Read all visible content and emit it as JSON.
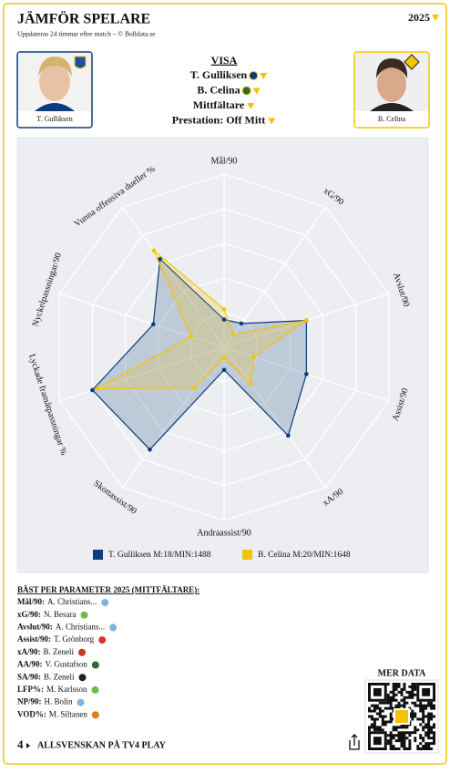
{
  "header": {
    "title": "JÄMFÖR SPELARE",
    "subtitle": "Uppdateras 24 timmar efter match – © Bolldata.se",
    "season": "2025"
  },
  "players": [
    {
      "name": "T. Gulliksen"
    },
    {
      "name": "B. Celina"
    }
  ],
  "menu": {
    "title": "VISA",
    "items": [
      "T. Gulliksen",
      "B. Celina",
      "Mittfältare",
      "Prestation: Off Mitt"
    ]
  },
  "chart_data": {
    "type": "radar",
    "axes": [
      "Mål/90",
      "xG/90",
      "Avslut/90",
      "Assist/90",
      "xA/90",
      "Andraassist/90",
      "Skottassist/90",
      "Lyckade framåtpassningar %",
      "Nyckelpassningar/90",
      "Vunna offensiva dueller %"
    ],
    "rlim": [
      0,
      100
    ],
    "rticks": [
      20,
      40,
      60,
      80,
      100
    ],
    "series": [
      {
        "name": "T. Gulliksen M:18/MIN:1488",
        "color": "#0b3d7a",
        "values": [
          16,
          17,
          50,
          50,
          63,
          13,
          73,
          80,
          43,
          63
        ]
      },
      {
        "name": "B. Celina M:20/MIN:1648",
        "color": "#f5c400",
        "values": [
          22,
          9,
          50,
          18,
          26,
          6,
          29,
          77,
          20,
          69
        ]
      }
    ]
  },
  "best": {
    "title": "BÄST PER PARAMETER 2025 (MITTFÄLTARE):",
    "rows": [
      {
        "param": "Mål/90:",
        "player": "A. Christians..."
      },
      {
        "param": "xG/90:",
        "player": "N. Besara"
      },
      {
        "param": "Avslut/90:",
        "player": "A. Christians..."
      },
      {
        "param": "Assist/90:",
        "player": "T. Grönborg"
      },
      {
        "param": "xA/90:",
        "player": "B. Zeneli"
      },
      {
        "param": "AA/90:",
        "player": "V. Gustafson"
      },
      {
        "param": "SA/90:",
        "player": "B. Zeneli"
      },
      {
        "param": "LFP%:",
        "player": "M. Karlsson"
      },
      {
        "param": "NP/90:",
        "player": "H. Bolin"
      },
      {
        "param": "VOD%:",
        "player": "M. Siltanen"
      }
    ]
  },
  "more": {
    "title": "MER DATA"
  },
  "footer": {
    "logo": "4",
    "text": "ALLSVENSKAN PÅ TV4 PLAY"
  }
}
